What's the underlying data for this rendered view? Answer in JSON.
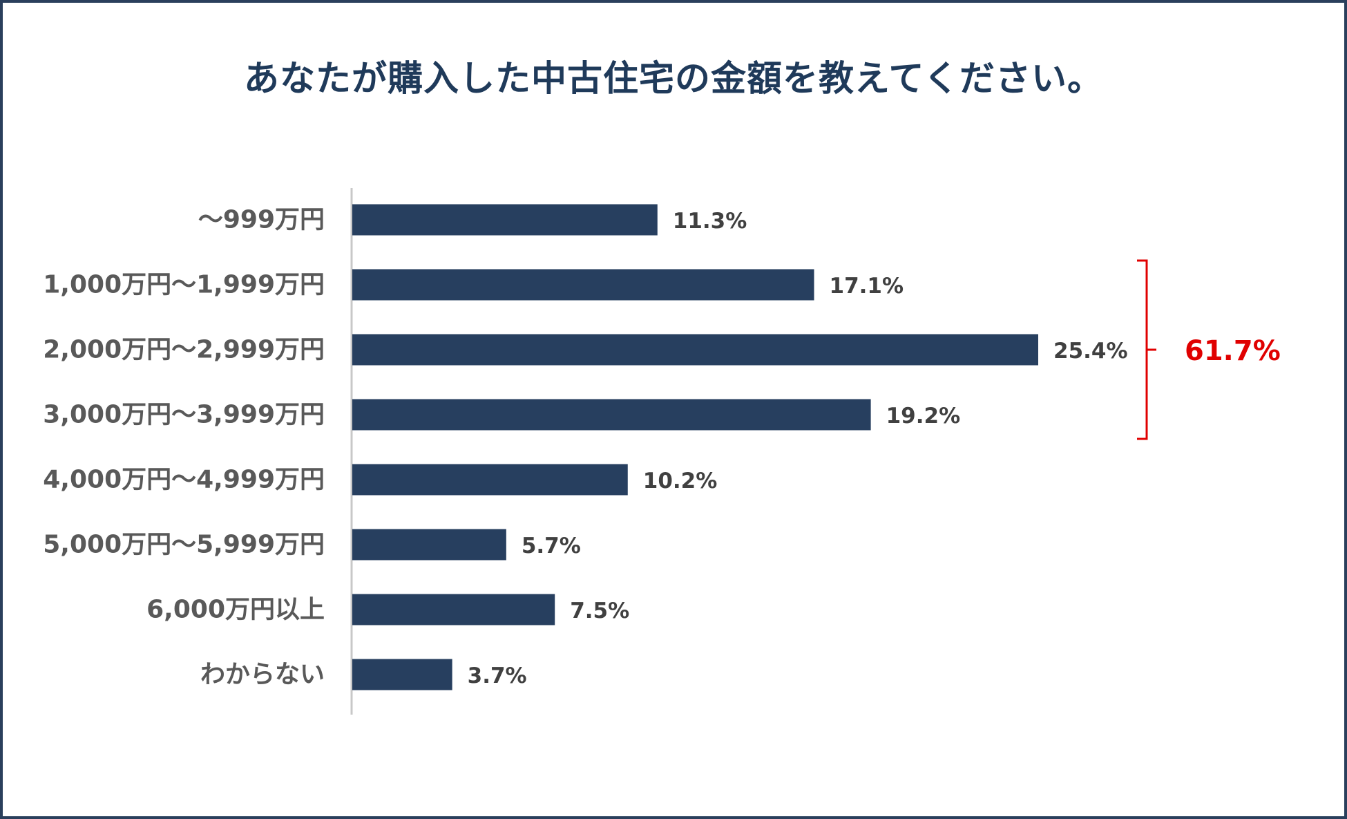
{
  "chart_data": {
    "type": "bar",
    "orientation": "horizontal",
    "title": "あなたが購入した中古住宅の金額を教えてください。",
    "categories": [
      "～999万円",
      "1,000万円～1,999万円",
      "2,000万円～2,999万円",
      "3,000万円～3,999万円",
      "4,000万円～4,999万円",
      "5,000万円～5,999万円",
      "6,000万円以上",
      "わからない"
    ],
    "values": [
      11.3,
      17.1,
      25.4,
      19.2,
      10.2,
      5.7,
      7.5,
      3.7
    ],
    "value_labels": [
      "11.3%",
      "17.1%",
      "25.4%",
      "19.2%",
      "10.2%",
      "5.7%",
      "7.5%",
      "3.7%"
    ],
    "unit": "%",
    "xlim": [
      0,
      25.4
    ],
    "grid": false,
    "legend": "none",
    "bar_color": "#273f5f",
    "annotation": {
      "type": "bracket",
      "from_index": 1,
      "to_index": 3,
      "label": "61.7%",
      "color": "#e00000"
    }
  }
}
